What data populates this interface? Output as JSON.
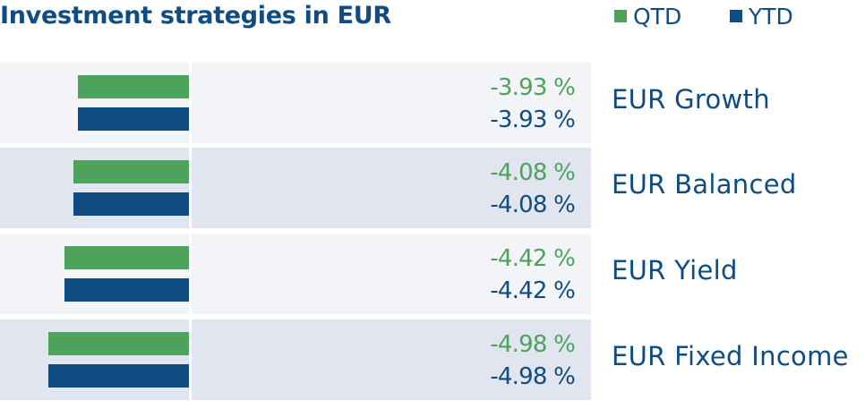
{
  "chart_data": {
    "type": "bar",
    "orientation": "horizontal",
    "title": "Investment strategies in EUR",
    "legend_position": "top-right",
    "series": [
      {
        "name": "QTD",
        "color": "#4ea25c",
        "values": [
          -3.93,
          -4.08,
          -4.42,
          -4.98
        ],
        "labels": [
          "-3.93 %",
          "-4.08 %",
          "-4.42 %",
          "-4.98 %"
        ]
      },
      {
        "name": "YTD",
        "color": "#0f4c81",
        "values": [
          -3.93,
          -4.08,
          -4.42,
          -4.98
        ],
        "labels": [
          "-3.93 %",
          "-4.08 %",
          "-4.42 %",
          "-4.98 %"
        ]
      }
    ],
    "categories": [
      "EUR Growth",
      "EUR Balanced",
      "EUR Yield",
      "EUR Fixed Income"
    ],
    "row_colors": [
      "#f2f4f8",
      "#e0e5ef"
    ]
  }
}
